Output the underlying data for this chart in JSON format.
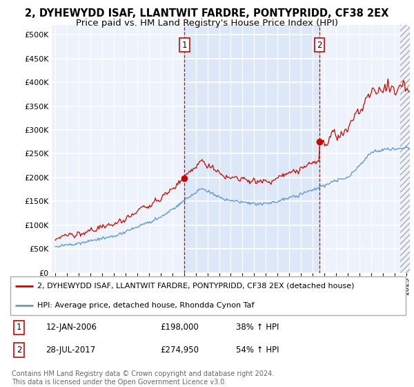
{
  "title1": "2, DYHEWYDD ISAF, LLANTWIT FARDRE, PONTYPRIDD, CF38 2EX",
  "title2": "Price paid vs. HM Land Registry's House Price Index (HPI)",
  "ylabel_ticks": [
    "£0",
    "£50K",
    "£100K",
    "£150K",
    "£200K",
    "£250K",
    "£300K",
    "£350K",
    "£400K",
    "£450K",
    "£500K"
  ],
  "ytick_vals": [
    0,
    50000,
    100000,
    150000,
    200000,
    250000,
    300000,
    350000,
    400000,
    450000,
    500000
  ],
  "ylim": [
    0,
    520000
  ],
  "xlim_start": 1994.7,
  "xlim_end": 2025.3,
  "sale1_x": 2006.04,
  "sale1_y": 198000,
  "sale2_x": 2017.57,
  "sale2_y": 274950,
  "legend_line1": "2, DYHEWYDD ISAF, LLANTWIT FARDRE, PONTYPRIDD, CF38 2EX (detached house)",
  "legend_line2": "HPI: Average price, detached house, Rhondda Cynon Taf",
  "annot1_label": "1",
  "annot1_date": "12-JAN-2006",
  "annot1_price": "£198,000",
  "annot1_hpi": "38% ↑ HPI",
  "annot2_label": "2",
  "annot2_date": "28-JUL-2017",
  "annot2_price": "£274,950",
  "annot2_hpi": "54% ↑ HPI",
  "footer": "Contains HM Land Registry data © Crown copyright and database right 2024.\nThis data is licensed under the Open Government Licence v3.0.",
  "red_color": "#cc0000",
  "blue_color": "#6699cc",
  "shade_color": "#dce8f8",
  "bg_color": "#eef3fb",
  "grid_color": "#ffffff",
  "hatch_color": "#cccccc",
  "title_fontsize": 10.5,
  "subtitle_fontsize": 9.5
}
